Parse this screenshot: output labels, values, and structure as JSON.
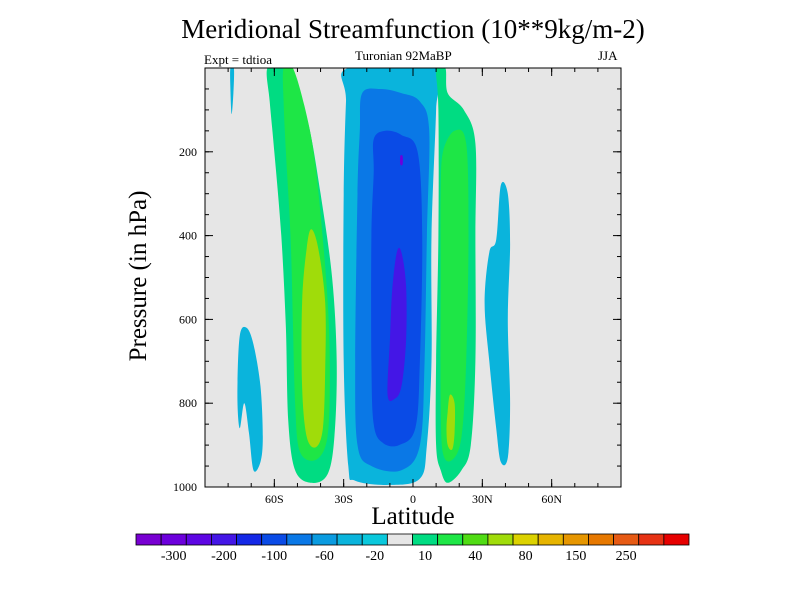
{
  "title": "Meridional Streamfunction (10**9kg/m-2)",
  "subtitle": "Turonian  92MaBP",
  "season": "JJA",
  "experiment": "Expt = tdtioa",
  "chart_data": {
    "type": "filled-contour",
    "title": "Meridional Streamfunction (10**9kg/m-2)",
    "xlabel": "Latitude",
    "ylabel": "Pressure (in hPa)",
    "xlim": [
      -90,
      90
    ],
    "ylim": [
      1000,
      0
    ],
    "xticks": [
      {
        "value": -60,
        "label": "60S"
      },
      {
        "value": -30,
        "label": "30S"
      },
      {
        "value": 0,
        "label": "0"
      },
      {
        "value": 30,
        "label": "30N"
      },
      {
        "value": 60,
        "label": "60N"
      }
    ],
    "yticks": [
      {
        "value": 200,
        "label": "200"
      },
      {
        "value": 400,
        "label": "400"
      },
      {
        "value": 600,
        "label": "600"
      },
      {
        "value": 800,
        "label": "800"
      },
      {
        "value": 1000,
        "label": "1000"
      }
    ],
    "background_color": "#e6e6e6",
    "colorbar": {
      "colors": [
        "#7800d2",
        "#6c00dc",
        "#5d06e3",
        "#4416e6",
        "#1428e6",
        "#0a4be6",
        "#0a78e6",
        "#0a9be0",
        "#0ab4dc",
        "#0ac8dc",
        "#e6e6e6",
        "#00dc82",
        "#1ee646",
        "#50dc14",
        "#a0dc0a",
        "#dcd200",
        "#e6b400",
        "#e69600",
        "#e67800",
        "#e65a14",
        "#e63214",
        "#e60000"
      ],
      "labels": [
        "-300",
        "-200",
        "-100",
        "-60",
        "-20",
        "10",
        "40",
        "80",
        "150",
        "250"
      ],
      "label_boundaries": [
        1,
        3,
        5,
        7,
        9,
        11,
        13,
        15,
        17,
        19
      ]
    },
    "cells": [
      {
        "name": "southern-positive-cell",
        "center": [
          -44,
          650
        ],
        "contours": [
          {
            "level": 10,
            "points": [
              [
                -63,
                0
              ],
              [
                -56,
                0
              ],
              [
                -50,
                60
              ],
              [
                -45,
                140
              ],
              [
                -40,
                300
              ],
              [
                -35,
                500
              ],
              [
                -33,
                700
              ],
              [
                -34,
                880
              ],
              [
                -37,
                970
              ],
              [
                -44,
                990
              ],
              [
                -51,
                960
              ],
              [
                -54,
                840
              ],
              [
                -55,
                620
              ],
              [
                -57,
                400
              ],
              [
                -60,
                200
              ],
              [
                -62,
                80
              ]
            ]
          },
          {
            "level": 40,
            "points": [
              [
                -56,
                0
              ],
              [
                -52,
                0
              ],
              [
                -47,
                90
              ],
              [
                -43,
                200
              ],
              [
                -40,
                350
              ],
              [
                -37,
                550
              ],
              [
                -36,
                720
              ],
              [
                -37,
                880
              ],
              [
                -42,
                935
              ],
              [
                -49,
                915
              ],
              [
                -51,
                800
              ],
              [
                -52,
                600
              ],
              [
                -53,
                400
              ],
              [
                -55,
                200
              ],
              [
                -56,
                80
              ]
            ]
          },
          {
            "level": 80,
            "points": [
              [
                -44,
                385
              ],
              [
                -41,
                430
              ],
              [
                -38,
                560
              ],
              [
                -38,
                720
              ],
              [
                -39,
                860
              ],
              [
                -42,
                905
              ],
              [
                -46,
                880
              ],
              [
                -48,
                760
              ],
              [
                -48,
                560
              ],
              [
                -46,
                430
              ]
            ]
          }
        ]
      },
      {
        "name": "polar-thin-cell",
        "center": [
          -84,
          20
        ],
        "contours": [
          {
            "level": -20,
            "points": [
              [
                -79,
                0
              ],
              [
                -77.5,
                0
              ],
              [
                -77.7,
                60
              ],
              [
                -78.5,
                110
              ],
              [
                -79,
                50
              ]
            ]
          }
        ]
      },
      {
        "name": "high-latitude-negative-cell",
        "center": [
          -73,
          780
        ],
        "contours": [
          {
            "level": -20,
            "points": [
              [
                -75,
                640
              ],
              [
                -72,
                620
              ],
              [
                -69,
                660
              ],
              [
                -66,
                760
              ],
              [
                -65,
                880
              ],
              [
                -66,
                940
              ],
              [
                -69,
                960
              ],
              [
                -71,
                870
              ],
              [
                -73,
                800
              ],
              [
                -75,
                860
              ],
              [
                -76,
                780
              ]
            ]
          }
        ]
      },
      {
        "name": "equatorial-negative-cell",
        "center": [
          -8,
          500
        ],
        "contours": [
          {
            "level": -20,
            "points": [
              [
                -28,
                0
              ],
              [
                10,
                0
              ],
              [
                10,
                100
              ],
              [
                8,
                400
              ],
              [
                8,
                700
              ],
              [
                6,
                900
              ],
              [
                3,
                980
              ],
              [
                -10,
                995
              ],
              [
                -25,
                985
              ],
              [
                -28,
                950
              ],
              [
                -30,
                700
              ],
              [
                -30,
                300
              ],
              [
                -29,
                80
              ]
            ]
          },
          {
            "level": -60,
            "points": [
              [
                -22,
                60
              ],
              [
                -14,
                50
              ],
              [
                -5,
                60
              ],
              [
                3,
                80
              ],
              [
                7,
                150
              ],
              [
                6,
                400
              ],
              [
                5,
                700
              ],
              [
                3,
                900
              ],
              [
                -5,
                960
              ],
              [
                -18,
                950
              ],
              [
                -24,
                900
              ],
              [
                -25,
                700
              ],
              [
                -24,
                300
              ],
              [
                -23,
                150
              ]
            ]
          },
          {
            "level": -100,
            "points": [
              [
                -17,
                170
              ],
              [
                -12,
                150
              ],
              [
                -5,
                160
              ],
              [
                2,
                200
              ],
              [
                4,
                400
              ],
              [
                3,
                700
              ],
              [
                1,
                860
              ],
              [
                -6,
                900
              ],
              [
                -13,
                895
              ],
              [
                -17,
                850
              ],
              [
                -18,
                700
              ],
              [
                -18,
                400
              ],
              [
                -17,
                250
              ]
            ]
          },
          {
            "level": -200,
            "points": [
              [
                -7,
                440
              ],
              [
                -5,
                440
              ],
              [
                -3,
                520
              ],
              [
                -3,
                650
              ],
              [
                -5,
                760
              ],
              [
                -8,
                790
              ],
              [
                -11,
                780
              ],
              [
                -10,
                650
              ],
              [
                -9,
                530
              ]
            ]
          },
          {
            "level": -300,
            "points": [
              [
                -5.5,
                210
              ],
              [
                -4.5,
                210
              ],
              [
                -4.5,
                230
              ],
              [
                -5.5,
                230
              ]
            ]
          }
        ]
      },
      {
        "name": "northern-positive-cell",
        "center": [
          18,
          500
        ],
        "contours": [
          {
            "level": 10,
            "points": [
              [
                10,
                0
              ],
              [
                14,
                0
              ],
              [
                15,
                60
              ],
              [
                22,
                100
              ],
              [
                27,
                180
              ],
              [
                27,
                400
              ],
              [
                27,
                700
              ],
              [
                25,
                900
              ],
              [
                21,
                960
              ],
              [
                15,
                990
              ],
              [
                12,
                960
              ],
              [
                10,
                900
              ],
              [
                10,
                700
              ],
              [
                11,
                400
              ],
              [
                11,
                100
              ]
            ]
          },
          {
            "level": 40,
            "points": [
              [
                13,
                200
              ],
              [
                18,
                150
              ],
              [
                23,
                180
              ],
              [
                24,
                400
              ],
              [
                23,
                700
              ],
              [
                21,
                880
              ],
              [
                17,
                935
              ],
              [
                13,
                920
              ],
              [
                12,
                800
              ],
              [
                12,
                500
              ],
              [
                12,
                300
              ]
            ]
          },
          {
            "level": 80,
            "points": [
              [
                16,
                780
              ],
              [
                18,
                800
              ],
              [
                18,
                870
              ],
              [
                17,
                910
              ],
              [
                15,
                900
              ],
              [
                14.5,
                860
              ],
              [
                15,
                820
              ]
            ]
          }
        ]
      },
      {
        "name": "northern-negative-cell",
        "center": [
          38,
          620
        ],
        "contours": [
          {
            "level": -20,
            "points": [
              [
                36,
                410
              ],
              [
                38,
                280
              ],
              [
                41,
                300
              ],
              [
                42,
                420
              ],
              [
                41,
                600
              ],
              [
                42,
                800
              ],
              [
                41,
                930
              ],
              [
                38,
                940
              ],
              [
                36,
                860
              ],
              [
                33,
                700
              ],
              [
                31,
                560
              ],
              [
                33,
                440
              ]
            ]
          }
        ]
      }
    ]
  }
}
